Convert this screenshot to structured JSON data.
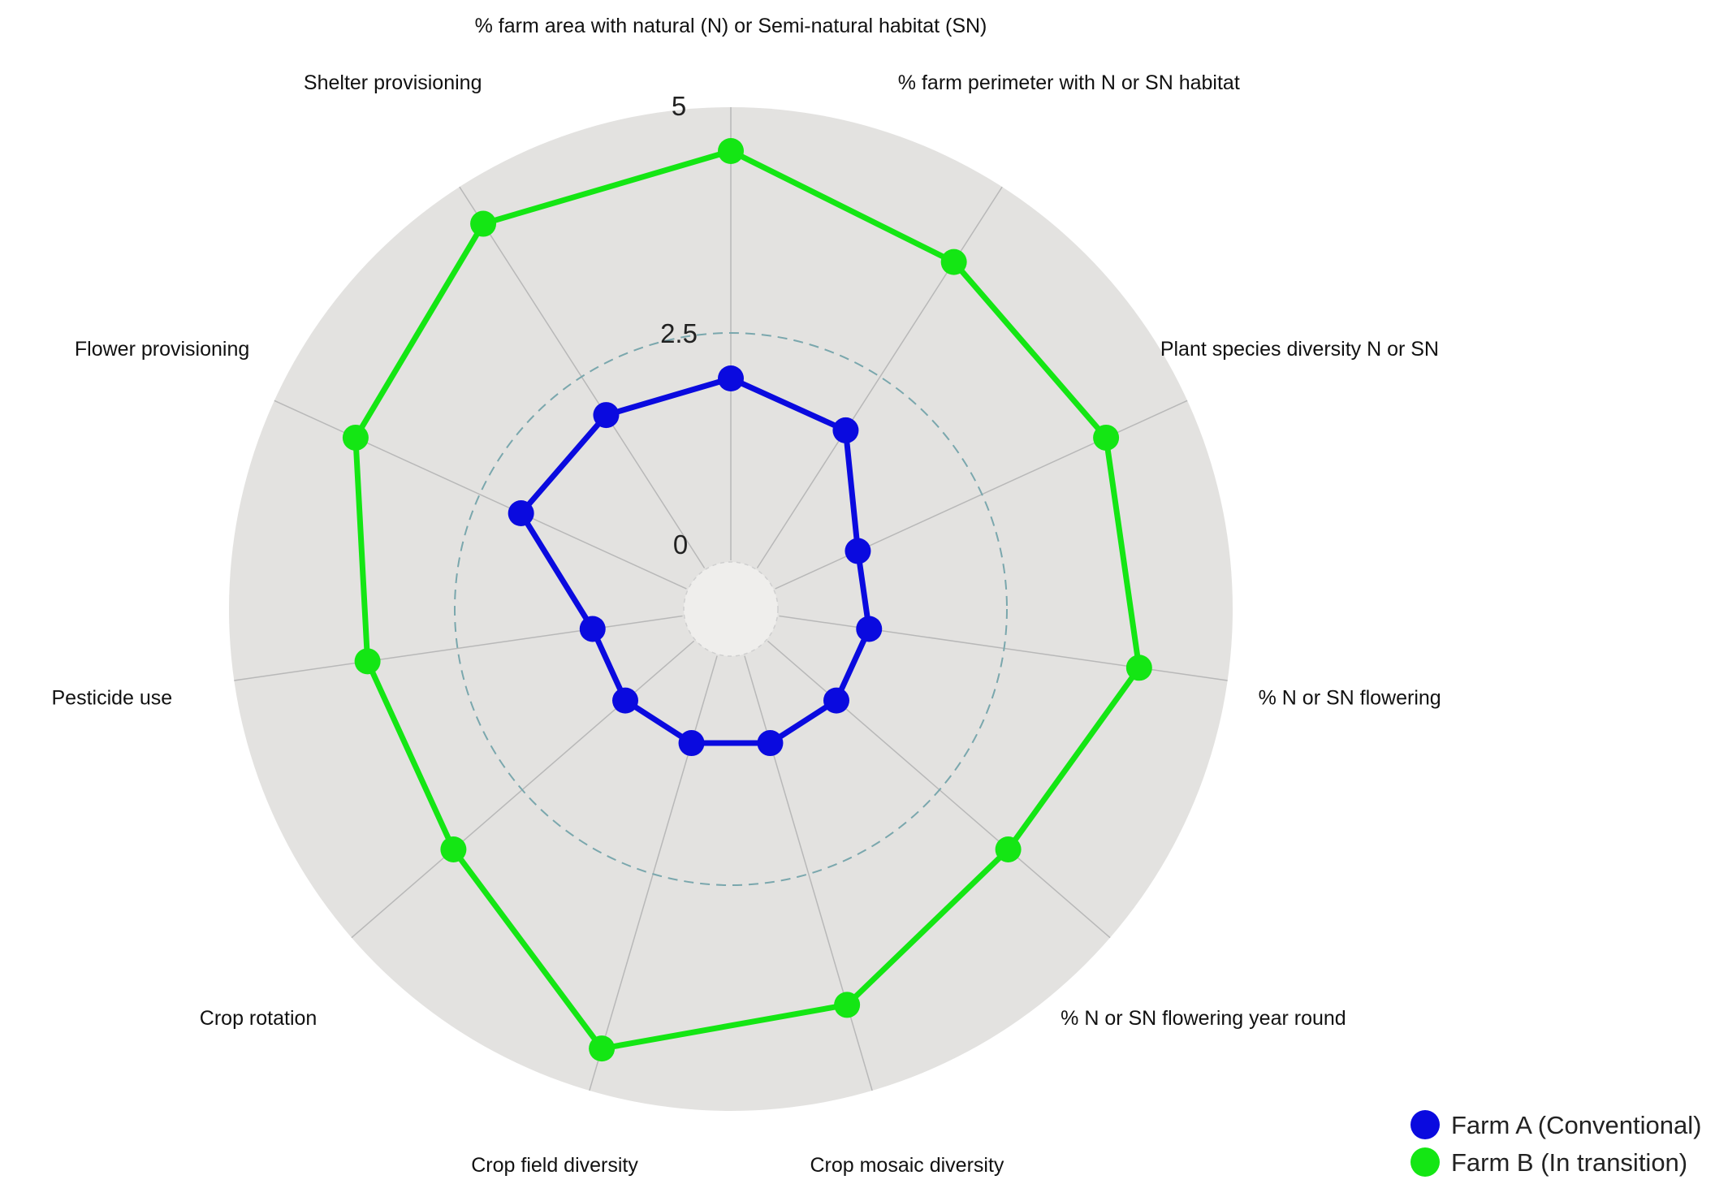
{
  "chart_data": {
    "type": "radar",
    "axes": [
      "% farm area with natural (N) or Semi-natural  habitat  (SN)",
      "% farm perimeter with N or SN habitat",
      "Plant species diversity N or SN",
      "% N or SN flowering",
      "% N or SN flowering year round",
      "Crop mosaic diversity",
      "Crop field diversity",
      "Crop rotation",
      "Pesticide use",
      "Flower provisioning",
      "Shelter provisioning"
    ],
    "rlim": [
      0,
      5
    ],
    "ticks": [
      {
        "value": 0,
        "label": "0"
      },
      {
        "value": 2.5,
        "label": "2.5"
      },
      {
        "value": 5,
        "label": "5"
      }
    ],
    "grid": true,
    "legend_position": "bottom-right",
    "series": [
      {
        "name": "Farm A (Conventional)",
        "color": "#0a0adf",
        "values": [
          2.0,
          1.8,
          1.0,
          1.0,
          1.0,
          1.0,
          1.0,
          1.0,
          1.0,
          2.0,
          2.0
        ]
      },
      {
        "name": "Farm B (In transition)",
        "color": "#14e614",
        "values": [
          4.5,
          4.0,
          4.0,
          4.0,
          3.5,
          4.0,
          4.5,
          3.5,
          3.5,
          4.0,
          4.5
        ]
      }
    ]
  }
}
